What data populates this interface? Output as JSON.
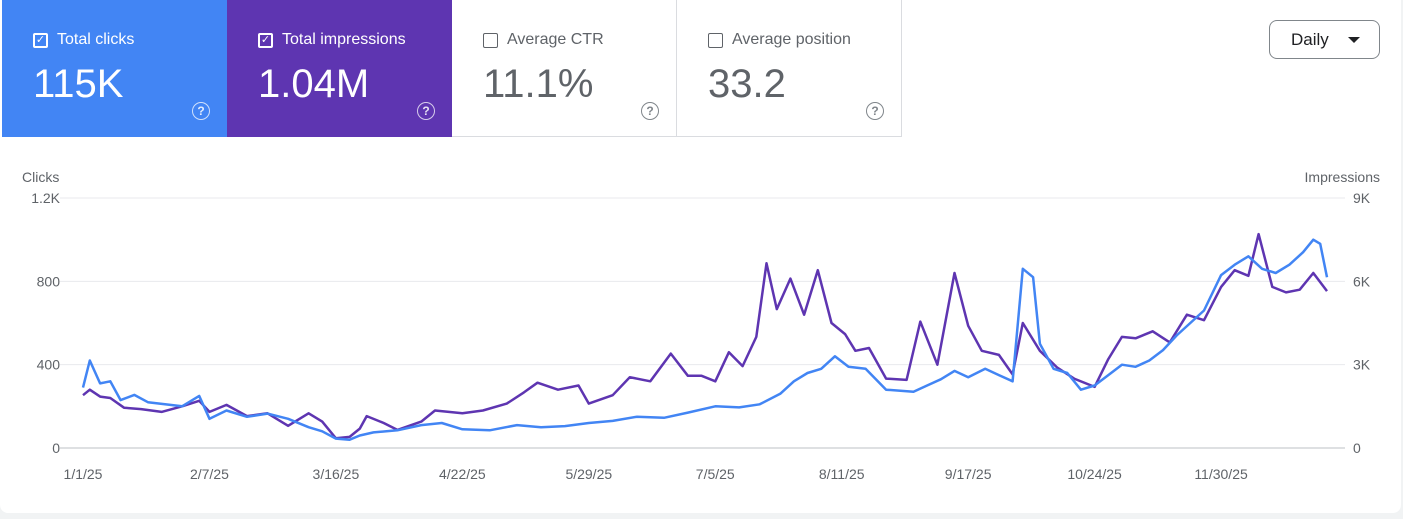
{
  "metrics": [
    {
      "label": "Total clicks",
      "value": "115K",
      "checked": true,
      "color": "#4285f4",
      "icon": "help-icon"
    },
    {
      "label": "Total impressions",
      "value": "1.04M",
      "checked": true,
      "color": "#5e35b1",
      "icon": "help-icon"
    },
    {
      "label": "Average CTR",
      "value": "11.1%",
      "checked": false,
      "color": "#ffffff",
      "icon": "help-icon"
    },
    {
      "label": "Average position",
      "value": "33.2",
      "checked": false,
      "color": "#ffffff",
      "icon": "help-icon"
    }
  ],
  "period_select": {
    "value": "Daily"
  },
  "help_glyph": "?",
  "checkmark_glyph": "✓",
  "chart_data": {
    "type": "line",
    "x_ticks": [
      "1/1/25",
      "2/7/25",
      "3/16/25",
      "4/22/25",
      "5/29/25",
      "7/5/25",
      "8/11/25",
      "9/17/25",
      "10/24/25",
      "11/30/25"
    ],
    "x_range": [
      "1/1/25",
      "12/31/25"
    ],
    "left_axis": {
      "label": "Clicks",
      "range": [
        0,
        1200
      ],
      "ticks": [
        "0",
        "400",
        "800",
        "1.2K"
      ],
      "tick_values": [
        0,
        400,
        800,
        1200
      ]
    },
    "right_axis": {
      "label": "Impressions",
      "range": [
        0,
        9000
      ],
      "ticks": [
        "0",
        "3K",
        "6K",
        "9K"
      ],
      "tick_values": [
        0,
        3000,
        6000,
        9000
      ]
    },
    "grid": true,
    "series": [
      {
        "axis": "left",
        "color": "#4285f4",
        "points": [
          [
            "1/1/25",
            290
          ],
          [
            "1/3/25",
            420
          ],
          [
            "1/6/25",
            310
          ],
          [
            "1/9/25",
            320
          ],
          [
            "1/12/25",
            230
          ],
          [
            "1/16/25",
            255
          ],
          [
            "1/20/25",
            220
          ],
          [
            "1/25/25",
            210
          ],
          [
            "1/30/25",
            200
          ],
          [
            "2/4/25",
            250
          ],
          [
            "2/7/25",
            140
          ],
          [
            "2/12/25",
            180
          ],
          [
            "2/18/25",
            150
          ],
          [
            "2/24/25",
            165
          ],
          [
            "3/2/25",
            140
          ],
          [
            "3/8/25",
            100
          ],
          [
            "3/12/25",
            80
          ],
          [
            "3/16/25",
            45
          ],
          [
            "3/20/25",
            40
          ],
          [
            "3/23/25",
            60
          ],
          [
            "3/27/25",
            75
          ],
          [
            "4/3/25",
            85
          ],
          [
            "4/10/25",
            110
          ],
          [
            "4/16/25",
            120
          ],
          [
            "4/22/25",
            90
          ],
          [
            "4/30/25",
            85
          ],
          [
            "5/8/25",
            110
          ],
          [
            "5/15/25",
            100
          ],
          [
            "5/22/25",
            105
          ],
          [
            "5/29/25",
            120
          ],
          [
            "6/5/25",
            130
          ],
          [
            "6/12/25",
            150
          ],
          [
            "6/20/25",
            145
          ],
          [
            "6/27/25",
            170
          ],
          [
            "7/5/25",
            200
          ],
          [
            "7/12/25",
            195
          ],
          [
            "7/18/25",
            210
          ],
          [
            "7/24/25",
            260
          ],
          [
            "7/28/25",
            320
          ],
          [
            "8/1/25",
            360
          ],
          [
            "8/5/25",
            380
          ],
          [
            "8/9/25",
            440
          ],
          [
            "8/13/25",
            390
          ],
          [
            "8/18/25",
            380
          ],
          [
            "8/24/25",
            280
          ],
          [
            "9/1/25",
            270
          ],
          [
            "9/5/25",
            300
          ],
          [
            "9/9/25",
            330
          ],
          [
            "9/13/25",
            370
          ],
          [
            "9/17/25",
            340
          ],
          [
            "9/22/25",
            380
          ],
          [
            "9/26/25",
            350
          ],
          [
            "9/30/25",
            320
          ],
          [
            "10/3/25",
            860
          ],
          [
            "10/6/25",
            820
          ],
          [
            "10/8/25",
            500
          ],
          [
            "10/12/25",
            380
          ],
          [
            "10/16/25",
            360
          ],
          [
            "10/20/25",
            280
          ],
          [
            "10/24/25",
            300
          ],
          [
            "10/28/25",
            350
          ],
          [
            "11/1/25",
            400
          ],
          [
            "11/5/25",
            390
          ],
          [
            "11/9/25",
            420
          ],
          [
            "11/13/25",
            470
          ],
          [
            "11/17/25",
            540
          ],
          [
            "11/21/25",
            600
          ],
          [
            "11/25/25",
            660
          ],
          [
            "11/30/25",
            830
          ],
          [
            "12/4/25",
            880
          ],
          [
            "12/8/25",
            920
          ],
          [
            "12/12/25",
            860
          ],
          [
            "12/16/25",
            840
          ],
          [
            "12/20/25",
            880
          ],
          [
            "12/24/25",
            940
          ],
          [
            "12/27/25",
            1000
          ],
          [
            "12/29/25",
            980
          ],
          [
            "12/31/25",
            820
          ]
        ]
      },
      {
        "axis": "right",
        "color": "#5e35b1",
        "points": [
          [
            "1/1/25",
            1900
          ],
          [
            "1/3/25",
            2100
          ],
          [
            "1/6/25",
            1850
          ],
          [
            "1/9/25",
            1800
          ],
          [
            "1/13/25",
            1450
          ],
          [
            "1/18/25",
            1400
          ],
          [
            "1/24/25",
            1300
          ],
          [
            "1/30/25",
            1500
          ],
          [
            "2/4/25",
            1700
          ],
          [
            "2/7/25",
            1300
          ],
          [
            "2/12/25",
            1550
          ],
          [
            "2/18/25",
            1150
          ],
          [
            "2/24/25",
            1250
          ],
          [
            "3/2/25",
            800
          ],
          [
            "3/8/25",
            1250
          ],
          [
            "3/12/25",
            950
          ],
          [
            "3/16/25",
            350
          ],
          [
            "3/20/25",
            400
          ],
          [
            "3/23/25",
            700
          ],
          [
            "3/25/25",
            1150
          ],
          [
            "3/30/25",
            900
          ],
          [
            "4/3/25",
            650
          ],
          [
            "4/10/25",
            950
          ],
          [
            "4/14/25",
            1350
          ],
          [
            "4/22/25",
            1250
          ],
          [
            "4/28/25",
            1350
          ],
          [
            "5/5/25",
            1600
          ],
          [
            "5/10/25",
            2000
          ],
          [
            "5/14/25",
            2350
          ],
          [
            "5/20/25",
            2100
          ],
          [
            "5/26/25",
            2250
          ],
          [
            "5/29/25",
            1600
          ],
          [
            "6/5/25",
            1900
          ],
          [
            "6/10/25",
            2550
          ],
          [
            "6/16/25",
            2400
          ],
          [
            "6/22/25",
            3400
          ],
          [
            "6/27/25",
            2600
          ],
          [
            "7/1/25",
            2600
          ],
          [
            "7/5/25",
            2400
          ],
          [
            "7/9/25",
            3450
          ],
          [
            "7/13/25",
            2950
          ],
          [
            "7/17/25",
            4000
          ],
          [
            "7/20/25",
            6650
          ],
          [
            "7/23/25",
            5000
          ],
          [
            "7/27/25",
            6100
          ],
          [
            "7/31/25",
            4800
          ],
          [
            "8/4/25",
            6400
          ],
          [
            "8/8/25",
            4500
          ],
          [
            "8/12/25",
            4100
          ],
          [
            "8/15/25",
            3500
          ],
          [
            "8/19/25",
            3600
          ],
          [
            "8/24/25",
            2500
          ],
          [
            "8/30/25",
            2450
          ],
          [
            "9/3/25",
            4550
          ],
          [
            "9/8/25",
            3000
          ],
          [
            "9/13/25",
            6300
          ],
          [
            "9/17/25",
            4400
          ],
          [
            "9/21/25",
            3500
          ],
          [
            "9/26/25",
            3350
          ],
          [
            "9/30/25",
            2650
          ],
          [
            "10/3/25",
            4500
          ],
          [
            "10/8/25",
            3500
          ],
          [
            "10/13/25",
            2900
          ],
          [
            "10/18/25",
            2500
          ],
          [
            "10/24/25",
            2200
          ],
          [
            "10/28/25",
            3200
          ],
          [
            "11/1/25",
            4000
          ],
          [
            "11/5/25",
            3950
          ],
          [
            "11/10/25",
            4200
          ],
          [
            "11/15/25",
            3800
          ],
          [
            "11/20/25",
            4800
          ],
          [
            "11/25/25",
            4600
          ],
          [
            "11/30/25",
            5800
          ],
          [
            "12/4/25",
            6400
          ],
          [
            "12/8/25",
            6200
          ],
          [
            "12/11/25",
            7700
          ],
          [
            "12/15/25",
            5800
          ],
          [
            "12/19/25",
            5600
          ],
          [
            "12/23/25",
            5700
          ],
          [
            "12/27/25",
            6300
          ],
          [
            "12/31/25",
            5650
          ]
        ]
      }
    ]
  }
}
